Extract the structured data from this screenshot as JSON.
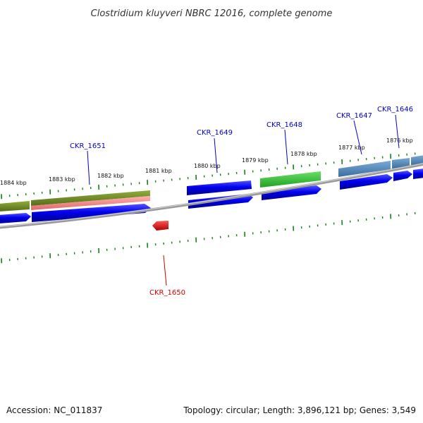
{
  "title": "Clostridium kluyveri NBRC 12016, complete genome",
  "footer": {
    "accession": "Accession: NC_011837",
    "stats": "Topology: circular; Length: 3,896,121 bp; Genes: 3,549"
  },
  "kbp_labels": [
    "1884 kbp",
    "1883 kbp",
    "1882 kbp",
    "1881 kbp",
    "1880 kbp",
    "1879 kbp",
    "1878 kbp",
    "1877 kbp",
    "1876 kbp"
  ],
  "gene_labels": [
    {
      "text": "CKR_1651",
      "color": "#0000cc"
    },
    {
      "text": "CKR_1649",
      "color": "#0000cc"
    },
    {
      "text": "CKR_1648",
      "color": "#0000cc"
    },
    {
      "text": "CKR_1647",
      "color": "#0000cc"
    },
    {
      "text": "CKR_1646",
      "color": "#0000cc"
    },
    {
      "text": "CKR_1650",
      "color": "#cc0000"
    }
  ],
  "colors": {
    "cds": "#0000ee",
    "olive": "#6b8e23",
    "pink": "#f08080",
    "green": "#32cd32",
    "steel": "#4682b4",
    "red": "#ee0000",
    "tick": "#1a7f1a",
    "backbone": "#888888"
  }
}
